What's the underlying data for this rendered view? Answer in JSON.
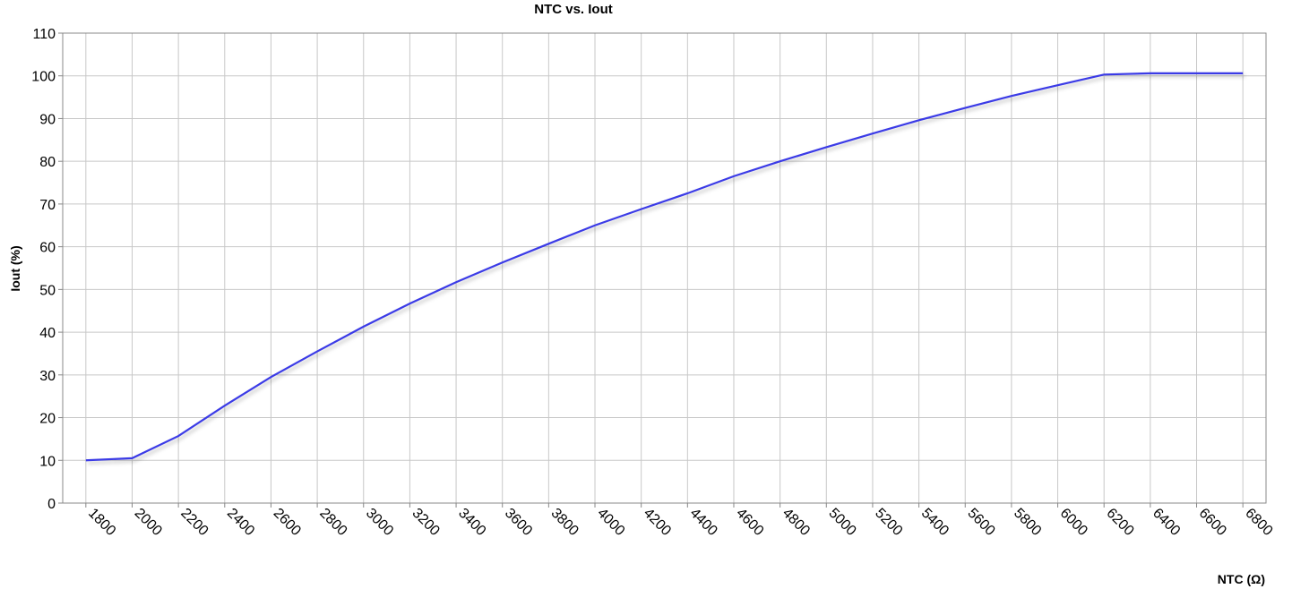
{
  "chart_data": {
    "type": "line",
    "title": "NTC vs. Iout",
    "x_label": "NTC (Ω)",
    "y_label": "Iout (%)",
    "x": [
      1800,
      2000,
      2200,
      2400,
      2600,
      2800,
      3000,
      3200,
      3400,
      3600,
      3800,
      4000,
      4200,
      4400,
      4600,
      4800,
      5000,
      5200,
      5400,
      5600,
      5800,
      6000,
      6200,
      6400,
      6600,
      6800
    ],
    "series": [
      {
        "name": "Iout",
        "color": "#3a3ae6",
        "values": [
          10,
          10.5,
          15.7,
          22.8,
          29.5,
          35.5,
          41.3,
          46.7,
          51.7,
          56.3,
          60.7,
          65.0,
          68.8,
          72.5,
          76.5,
          80.0,
          83.3,
          86.5,
          89.6,
          92.5,
          95.3,
          97.8,
          100.3,
          100.6,
          100.6,
          100.6
        ]
      }
    ],
    "xlim": [
      1700,
      6900
    ],
    "xticks": [
      1800,
      2000,
      2200,
      2400,
      2600,
      2800,
      3000,
      3200,
      3400,
      3600,
      3800,
      4000,
      4200,
      4400,
      4600,
      4800,
      5000,
      5200,
      5400,
      5600,
      5800,
      6000,
      6200,
      6400,
      6600,
      6800
    ],
    "ylim": [
      0,
      110
    ],
    "yticks": [
      0,
      10,
      20,
      30,
      40,
      50,
      60,
      70,
      80,
      90,
      100,
      110
    ],
    "grid": true
  }
}
